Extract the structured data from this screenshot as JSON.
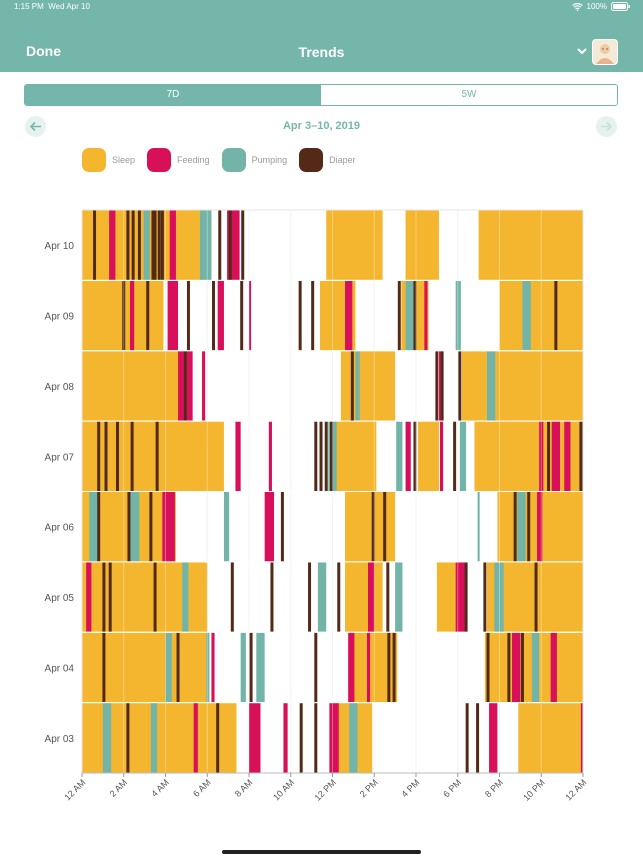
{
  "status_bar": {
    "time": "1:15 PM",
    "date": "Wed Apr 10",
    "battery": "100%"
  },
  "nav": {
    "done_label": "Done",
    "title": "Trends"
  },
  "segment": {
    "options": [
      "7D",
      "5W"
    ],
    "selected": "7D"
  },
  "date_range": "Apr 3–10, 2019",
  "colors": {
    "teal": "#74b6aa",
    "Sleep": "#f5b62f",
    "Feeding": "#d8105a",
    "Pumping": "#72b5a8",
    "Diaper": "#532a18"
  },
  "chart_data": {
    "type": "timeline",
    "x_axis": {
      "unit": "hour of day",
      "range": [
        0,
        24
      ],
      "ticks": [
        0,
        2,
        4,
        6,
        8,
        10,
        12,
        14,
        16,
        18,
        20,
        22,
        24
      ],
      "tick_labels": [
        "12 AM",
        "2 AM",
        "4 AM",
        "6 AM",
        "8 AM",
        "10 AM",
        "12 PM",
        "2 PM",
        "4 PM",
        "6 PM",
        "8 PM",
        "10 PM",
        "12 AM"
      ]
    },
    "legend": [
      "Sleep",
      "Feeding",
      "Pumping",
      "Diaper"
    ],
    "rows": [
      {
        "day": "Apr 10",
        "sleep": [
          [
            0,
            6.2
          ],
          [
            11.7,
            14.4
          ],
          [
            15.5,
            17.1
          ],
          [
            19,
            24
          ]
        ],
        "feeding": [
          [
            1.3,
            1.6
          ],
          [
            4.2,
            4.5
          ],
          [
            6.95,
            7.55
          ]
        ],
        "pumping": [
          [
            2.95,
            3.25
          ],
          [
            5.65,
            6.2
          ]
        ],
        "diaper": [
          0.6,
          2.2,
          2.45,
          2.75,
          3.4,
          3.5,
          3.7,
          3.85,
          6.6,
          7.1,
          7.7
        ]
      },
      {
        "day": "Apr 09",
        "sleep": [
          [
            0,
            3.9
          ],
          [
            11.4,
            13.1
          ],
          [
            15.3,
            16.6
          ],
          [
            20,
            24
          ]
        ],
        "feeding": [
          [
            2.3,
            2.5
          ],
          [
            4.1,
            4.6
          ],
          [
            6.5,
            6.8
          ],
          [
            8.0,
            8.1
          ],
          [
            12.6,
            12.95
          ],
          [
            16.4,
            16.55
          ]
        ],
        "pumping": [
          [
            15.5,
            15.9
          ],
          [
            17.9,
            18.15
          ],
          [
            21.1,
            21.5
          ]
        ],
        "diaper": [
          2.0,
          3.15,
          5.1,
          6.3,
          7.65,
          10.45,
          11.05,
          15.2,
          15.95,
          22.7
        ]
      },
      {
        "day": "Apr 08",
        "sleep": [
          [
            0,
            4.9
          ],
          [
            12.4,
            15
          ],
          [
            18.2,
            24
          ]
        ],
        "feeding": [
          [
            4.6,
            5.3
          ],
          [
            5.75,
            5.9
          ],
          [
            17.1,
            17.3
          ]
        ],
        "pumping": [
          [
            13.1,
            13.3
          ],
          [
            19.4,
            19.8
          ]
        ],
        "diaper": [
          4.95,
          12.95,
          17.0,
          17.25,
          18.1
        ]
      },
      {
        "day": "Apr 07",
        "sleep": [
          [
            0,
            6.8
          ],
          [
            12.1,
            14.1
          ],
          [
            16.1,
            17.1
          ],
          [
            18.8,
            24
          ]
        ],
        "feeding": [
          [
            7.35,
            7.6
          ],
          [
            8.95,
            9.1
          ],
          [
            15.5,
            15.75
          ],
          [
            17.15,
            17.3
          ],
          [
            21.9,
            22.1
          ],
          [
            22.5,
            22.9
          ],
          [
            23.1,
            23.4
          ]
        ],
        "pumping": [
          [
            11.8,
            12.2
          ],
          [
            15.05,
            15.35
          ],
          [
            18.1,
            18.4
          ]
        ],
        "diaper": [
          0.8,
          1.15,
          1.7,
          2.4,
          3.6,
          11.2,
          11.45,
          11.7,
          11.95,
          15.95,
          17.85,
          22.35,
          23.9
        ]
      },
      {
        "day": "Apr 06",
        "sleep": [
          [
            0,
            4.5
          ],
          [
            12.6,
            15
          ],
          [
            19.9,
            24
          ]
        ],
        "feeding": [
          [
            3.85,
            4.45
          ],
          [
            8.75,
            9.2
          ],
          [
            21.8,
            22.05
          ]
        ],
        "pumping": [
          [
            0.35,
            0.75
          ],
          [
            2.3,
            2.75
          ],
          [
            6.8,
            7.05
          ],
          [
            18.95,
            19.05
          ],
          [
            20.85,
            21.25
          ]
        ],
        "diaper": [
          0.8,
          2.25,
          3.3,
          9.6,
          13.95,
          14.5,
          20.75,
          21.4
        ]
      },
      {
        "day": "Apr 05",
        "sleep": [
          [
            0,
            6
          ],
          [
            12.6,
            14.4
          ],
          [
            17,
            18
          ],
          [
            19.4,
            24
          ]
        ],
        "feeding": [
          [
            0.2,
            0.45
          ],
          [
            13.7,
            14.0
          ],
          [
            17.9,
            18.4
          ]
        ],
        "pumping": [
          [
            4.8,
            5.1
          ],
          [
            11.3,
            11.7
          ],
          [
            15.0,
            15.35
          ],
          [
            19.75,
            20.2
          ]
        ],
        "diaper": [
          1.05,
          1.35,
          3.5,
          7.2,
          9.1,
          10.9,
          12.3,
          14.65,
          18.4,
          19.3,
          21.75
        ]
      },
      {
        "day": "Apr 04",
        "sleep": [
          [
            0,
            6.1
          ],
          [
            13,
            15.1
          ],
          [
            19.3,
            24
          ]
        ],
        "feeding": [
          [
            6.2,
            6.35
          ],
          [
            12.75,
            13.05
          ],
          [
            13.65,
            13.8
          ],
          [
            20.6,
            21.0
          ],
          [
            22.45,
            22.75
          ]
        ],
        "pumping": [
          [
            4.0,
            4.3
          ],
          [
            5.95,
            6.1
          ],
          [
            7.6,
            7.85
          ],
          [
            8.35,
            8.75
          ],
          [
            21.55,
            21.9
          ]
        ],
        "diaper": [
          1.05,
          4.6,
          8.1,
          11.2,
          14.7,
          14.95,
          19.45,
          20.45,
          21.1
        ]
      },
      {
        "day": "Apr 03",
        "sleep": [
          [
            0,
            7.4
          ],
          [
            12,
            13.9
          ],
          [
            20.9,
            24
          ]
        ],
        "feeding": [
          [
            5.35,
            5.55
          ],
          [
            8.0,
            8.55
          ],
          [
            9.65,
            9.85
          ],
          [
            11.85,
            12.3
          ],
          [
            19.5,
            19.9
          ],
          [
            23.9,
            24
          ]
        ],
        "pumping": [
          [
            1.0,
            1.4
          ],
          [
            3.3,
            3.6
          ],
          [
            12.8,
            13.2
          ]
        ],
        "diaper": [
          2.2,
          6.5,
          10.5,
          11.2,
          18.45,
          18.95
        ]
      }
    ]
  }
}
